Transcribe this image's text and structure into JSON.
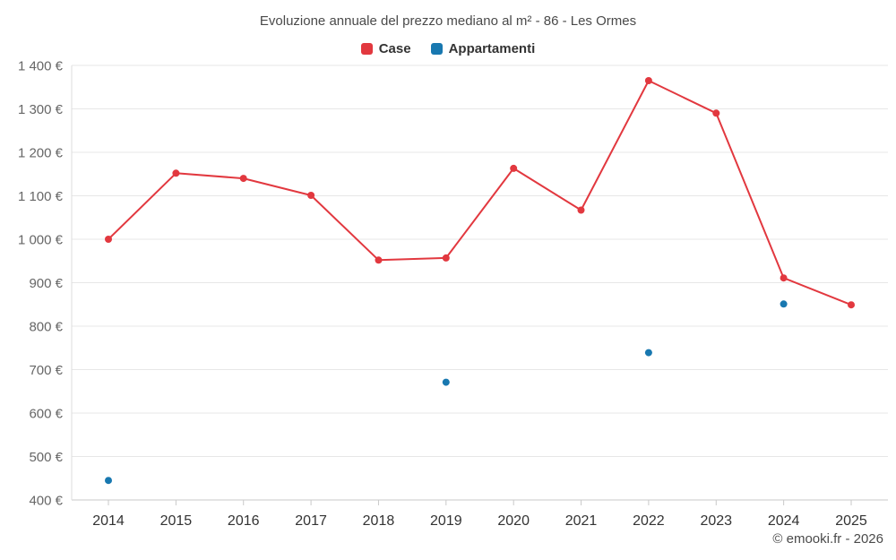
{
  "title": "Evoluzione annuale del prezzo mediano al m² - 86 - Les Ormes",
  "legend": [
    {
      "label": "Case",
      "color": "#e2383f"
    },
    {
      "label": "Appartamenti",
      "color": "#1878b0"
    }
  ],
  "footer": "© emooki.fr - 2026",
  "chart_data": {
    "type": "line",
    "x": [
      "2014",
      "2015",
      "2016",
      "2017",
      "2018",
      "2019",
      "2020",
      "2021",
      "2022",
      "2023",
      "2024",
      "2025"
    ],
    "series": [
      {
        "name": "case",
        "label": "Case",
        "color": "#e2383f",
        "line": true,
        "values": [
          1000,
          1152,
          1140,
          1101,
          952,
          957,
          1163,
          1067,
          1365,
          1290,
          911,
          849
        ]
      },
      {
        "name": "appartamenti",
        "label": "Appartamenti",
        "color": "#1878b0",
        "line": false,
        "values": [
          445,
          null,
          null,
          null,
          null,
          671,
          null,
          null,
          739,
          null,
          851,
          null
        ]
      }
    ],
    "ylim": [
      400,
      1400
    ],
    "ytick_step": 100,
    "ytick_labels": [
      "400 €",
      "500 €",
      "600 €",
      "700 €",
      "800 €",
      "900 €",
      "1 000 €",
      "1 100 €",
      "1 200 €",
      "1 300 €",
      "1 400 €"
    ],
    "grid": true,
    "legend_position": "top",
    "xlabel": "",
    "ylabel": ""
  }
}
